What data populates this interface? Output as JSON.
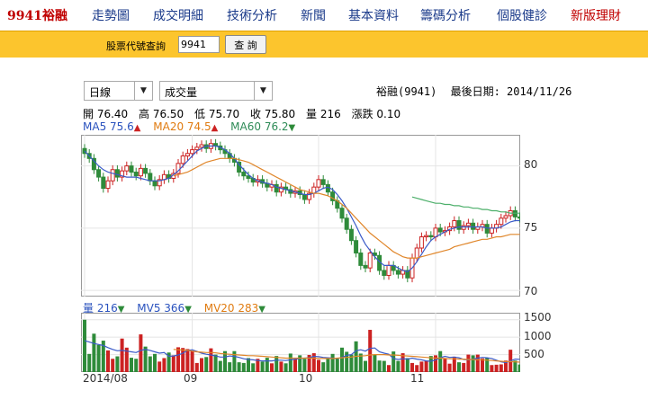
{
  "nav": {
    "brand": "9941裕融",
    "items": [
      "走勢圖",
      "成交明細",
      "技術分析",
      "新聞",
      "基本資料",
      "籌碼分析",
      "個股健診",
      "新版理財"
    ]
  },
  "query": {
    "label": "股票代號查詢",
    "value": "9941",
    "button": "查 詢"
  },
  "controls": {
    "period": "日線",
    "indicator": "成交量"
  },
  "stock": {
    "name_code": "裕融(9941)",
    "last_date_label": "最後日期: 2014/11/26"
  },
  "ohlc": {
    "open": "開 76.40",
    "high": "高 76.50",
    "low": "低 75.70",
    "close": "收 75.80",
    "volume": "量 216",
    "change": "漲跌 0.10"
  },
  "ma_legend": [
    {
      "label": "MA5 75.6",
      "color": "#2a52be",
      "dir": "up"
    },
    {
      "label": "MA20 74.5",
      "color": "#e07b10",
      "dir": "up"
    },
    {
      "label": "MA60 76.2",
      "color": "#2e8b57",
      "dir": "down"
    }
  ],
  "vol_legend": [
    {
      "label": "量 216",
      "color": "#2a52be",
      "dir": "down"
    },
    {
      "label": "MV5 366",
      "color": "#2a52be",
      "dir": "down"
    },
    {
      "label": "MV20 283",
      "color": "#e07b10",
      "dir": "down"
    }
  ],
  "colors": {
    "up": "#cc2222",
    "down": "#2e8b3a",
    "ma5": "#3a5ac8",
    "ma20": "#e0862a",
    "ma60": "#4caf6a"
  },
  "chart_data": {
    "type": "candlestick",
    "price_axis": {
      "ticks": [
        "80",
        "75",
        "70"
      ],
      "range": [
        69.5,
        82.5
      ]
    },
    "volume_axis": {
      "ticks": [
        "1500",
        "1000",
        "500"
      ],
      "range": [
        0,
        1700
      ]
    },
    "x_labels": [
      "2014/08",
      "09",
      "10",
      "11"
    ],
    "x_label_index": [
      0,
      23,
      50,
      75
    ],
    "closes": [
      81.0,
      80.6,
      79.7,
      79.1,
      78.2,
      78.8,
      79.7,
      79.1,
      79.6,
      80.0,
      79.5,
      79.2,
      79.8,
      79.4,
      78.8,
      78.4,
      78.9,
      79.3,
      79.0,
      79.4,
      80.2,
      80.8,
      81.0,
      81.3,
      81.5,
      81.7,
      81.4,
      81.8,
      81.6,
      81.3,
      81.0,
      80.6,
      80.3,
      79.5,
      79.2,
      79.0,
      78.7,
      78.9,
      78.6,
      78.3,
      78.5,
      77.9,
      78.3,
      78.1,
      77.8,
      78.0,
      77.7,
      77.3,
      77.8,
      78.3,
      78.9,
      78.5,
      77.9,
      77.2,
      76.6,
      75.8,
      74.9,
      74.0,
      73.0,
      72.0,
      71.8,
      73.0,
      72.8,
      71.6,
      71.2,
      72.0,
      71.6,
      71.3,
      71.6,
      71.0,
      72.6,
      73.4,
      74.3,
      74.4,
      74.3,
      75.0,
      74.7,
      74.8,
      75.1,
      75.6,
      74.9,
      75.2,
      75.4,
      74.9,
      75.1,
      75.3,
      74.6,
      75.0,
      75.3,
      75.8,
      76.0,
      76.4,
      75.9,
      75.8
    ],
    "volumes": [
      1500,
      520,
      1100,
      780,
      900,
      620,
      380,
      450,
      960,
      700,
      410,
      380,
      1080,
      730,
      450,
      520,
      300,
      400,
      560,
      480,
      710,
      690,
      660,
      600,
      260,
      400,
      430,
      680,
      500,
      320,
      600,
      280,
      600,
      280,
      260,
      400,
      250,
      380,
      300,
      410,
      250,
      460,
      300,
      250,
      530,
      360,
      480,
      380,
      490,
      540,
      350,
      280,
      400,
      520,
      380,
      700,
      580,
      500,
      880,
      530,
      320,
      1210,
      500,
      330,
      320,
      200,
      590,
      320,
      540,
      400,
      260,
      200,
      300,
      330,
      460,
      480,
      600,
      380,
      240,
      440,
      280,
      260,
      500,
      480,
      500,
      390,
      410,
      200,
      210,
      220,
      330,
      640,
      330,
      216
    ],
    "ma5": [
      81.2,
      80.8,
      80.4,
      80.0,
      79.7,
      79.5,
      79.4,
      79.3,
      79.2,
      79.1,
      79.1,
      79.1,
      79.0,
      78.9,
      78.8,
      78.8,
      78.8,
      78.9,
      79.0,
      79.3,
      79.6,
      80.0,
      80.4,
      80.8,
      81.2,
      81.4,
      81.6,
      81.6,
      81.6,
      81.5,
      81.3,
      81.0,
      80.6,
      80.1,
      79.7,
      79.3,
      79.0,
      78.8,
      78.7,
      78.6,
      78.5,
      78.3,
      78.2,
      78.1,
      78.0,
      77.9,
      77.8,
      77.7,
      77.7,
      77.8,
      78.0,
      78.2,
      78.3,
      78.1,
      77.7,
      77.2,
      76.6,
      75.9,
      75.2,
      74.4,
      73.7,
      73.2,
      72.7,
      72.3,
      72.0,
      72.0,
      72.0,
      71.8,
      71.6,
      71.5,
      71.8,
      72.3,
      72.9,
      73.5,
      74.0,
      74.3,
      74.5,
      74.7,
      74.9,
      75.0,
      75.1,
      75.1,
      75.1,
      75.1,
      75.1,
      75.1,
      75.0,
      75.0,
      75.0,
      75.1,
      75.3,
      75.5,
      75.6,
      75.6
    ],
    "ma20": [
      null,
      null,
      null,
      null,
      null,
      null,
      null,
      null,
      null,
      null,
      null,
      null,
      null,
      null,
      null,
      null,
      null,
      null,
      null,
      79.2,
      79.3,
      79.4,
      79.5,
      79.7,
      79.9,
      80.1,
      80.3,
      80.4,
      80.5,
      80.6,
      80.6,
      80.6,
      80.6,
      80.5,
      80.4,
      80.3,
      80.1,
      79.9,
      79.7,
      79.5,
      79.3,
      79.1,
      78.9,
      78.7,
      78.5,
      78.3,
      78.1,
      78.0,
      77.9,
      77.8,
      77.8,
      77.7,
      77.6,
      77.4,
      77.2,
      76.9,
      76.6,
      76.2,
      75.8,
      75.4,
      75.0,
      74.6,
      74.3,
      74.0,
      73.7,
      73.4,
      73.1,
      72.9,
      72.7,
      72.6,
      72.6,
      72.6,
      72.7,
      72.8,
      72.9,
      73.0,
      73.1,
      73.2,
      73.3,
      73.5,
      73.6,
      73.7,
      73.8,
      73.9,
      74.0,
      74.1,
      74.1,
      74.2,
      74.3,
      74.3,
      74.4,
      74.5,
      74.5,
      74.5
    ],
    "ma60": [
      null,
      null,
      null,
      null,
      null,
      null,
      null,
      null,
      null,
      null,
      null,
      null,
      null,
      null,
      null,
      null,
      null,
      null,
      null,
      null,
      null,
      null,
      null,
      null,
      null,
      null,
      null,
      null,
      null,
      null,
      null,
      null,
      null,
      null,
      null,
      null,
      null,
      null,
      null,
      null,
      null,
      null,
      null,
      null,
      null,
      null,
      null,
      null,
      null,
      null,
      null,
      null,
      null,
      null,
      null,
      null,
      null,
      null,
      null,
      null,
      null,
      null,
      null,
      null,
      null,
      null,
      null,
      null,
      null,
      null,
      77.5,
      77.4,
      77.3,
      77.2,
      77.1,
      77.0,
      77.0,
      76.9,
      76.9,
      76.8,
      76.8,
      76.7,
      76.7,
      76.6,
      76.6,
      76.5,
      76.5,
      76.4,
      76.4,
      76.3,
      76.3,
      76.2,
      76.2,
      76.2
    ],
    "mv5": [
      900,
      860,
      820,
      790,
      760,
      700,
      650,
      610,
      620,
      600,
      580,
      560,
      620,
      650,
      620,
      580,
      540,
      560,
      450,
      460,
      490,
      540,
      620,
      640,
      590,
      540,
      510,
      490,
      460,
      430,
      430,
      460,
      450,
      420,
      380,
      360,
      350,
      330,
      320,
      320,
      320,
      340,
      340,
      330,
      350,
      370,
      390,
      400,
      410,
      450,
      440,
      420,
      410,
      400,
      390,
      420,
      480,
      500,
      610,
      640,
      600,
      680,
      690,
      580,
      540,
      510,
      390,
      360,
      380,
      370,
      400,
      370,
      350,
      320,
      310,
      350,
      410,
      450,
      420,
      430,
      410,
      360,
      350,
      370,
      400,
      420,
      410,
      390,
      340,
      290,
      270,
      320,
      370,
      366
    ],
    "mv20": [
      null,
      null,
      null,
      null,
      null,
      null,
      null,
      null,
      null,
      null,
      null,
      null,
      null,
      null,
      null,
      null,
      null,
      null,
      null,
      650,
      640,
      630,
      620,
      600,
      580,
      570,
      560,
      560,
      550,
      530,
      520,
      510,
      500,
      490,
      480,
      470,
      470,
      460,
      450,
      440,
      430,
      420,
      410,
      400,
      400,
      400,
      400,
      400,
      400,
      400,
      390,
      390,
      390,
      390,
      400,
      410,
      420,
      430,
      450,
      460,
      470,
      490,
      500,
      500,
      500,
      490,
      490,
      480,
      470,
      460,
      450,
      440,
      430,
      420,
      410,
      400,
      400,
      390,
      380,
      380,
      370,
      370,
      360,
      360,
      350,
      350,
      340,
      330,
      320,
      310,
      300,
      300,
      290,
      283
    ]
  }
}
